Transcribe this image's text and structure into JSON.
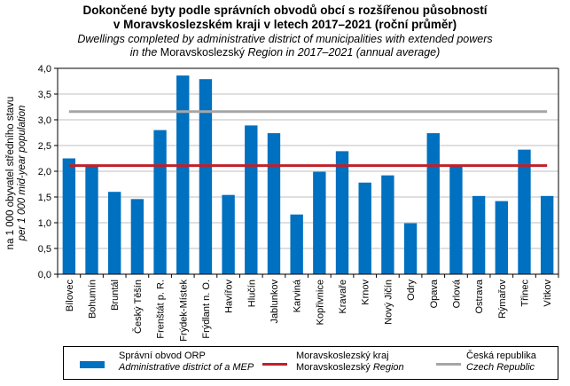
{
  "chart_data": {
    "type": "bar",
    "title": "Dokončené byty podle správních obvodů obcí s rozšířenou působností",
    "title_line2": "v Moravskoslezském kraji v letech 2017–2021 (roční průměr)",
    "subtitle": "Dwellings completed by administrative district of municipalities with extended powers",
    "subtitle_line2_prefix": "in the",
    "subtitle_line2_region": "Moravskoslezský",
    "subtitle_line2_suffix": "Region in 2017–2021 (annual average)",
    "ylabel": "na 1 000 obyvatel středního stavu",
    "ylabel_en": "per 1 000 mid-year population",
    "xlabel": "",
    "ylim": [
      0,
      4
    ],
    "yticks": [
      "0,0",
      "0,5",
      "1,0",
      "1,5",
      "2,0",
      "2,5",
      "3,0",
      "3,5",
      "4,0"
    ],
    "ytick_values": [
      0,
      0.5,
      1,
      1.5,
      2,
      2.5,
      3,
      3.5,
      4
    ],
    "grid": true,
    "categories": [
      "Bílovec",
      "Bohumín",
      "Bruntál",
      "Český Těšín",
      "Frenštát p. R.",
      "Frýdek-Místek",
      "Frýdlant n. O.",
      "Havířov",
      "Hlučín",
      "Jablunkov",
      "Karviná",
      "Kopřivnice",
      "Kravaře",
      "Krnov",
      "Nový Jičín",
      "Odry",
      "Opava",
      "Orlová",
      "Ostrava",
      "Rýmařov",
      "Třinec",
      "Vítkov"
    ],
    "series": [
      {
        "name": "Správní obvod ORP",
        "name_en": "Administrative district of a MEP",
        "kind": "bar",
        "color": "#0070C0",
        "values": [
          2.25,
          2.1,
          1.6,
          1.46,
          2.8,
          3.86,
          3.79,
          1.54,
          2.89,
          2.74,
          1.16,
          1.99,
          2.39,
          1.78,
          1.92,
          0.99,
          2.74,
          2.1,
          1.52,
          1.42,
          2.42,
          1.52
        ]
      },
      {
        "name": "Moravskoslezský kraj",
        "name_en_prefix": "Moravskoslezský",
        "name_en_suffix": "Region",
        "kind": "line",
        "color": "#C0202A",
        "value": 2.11
      },
      {
        "name": "Česká republika",
        "name_en": "Czech Republic",
        "kind": "line",
        "color": "#A6A6A6",
        "value": 3.16
      }
    ],
    "legend_position": "bottom"
  }
}
